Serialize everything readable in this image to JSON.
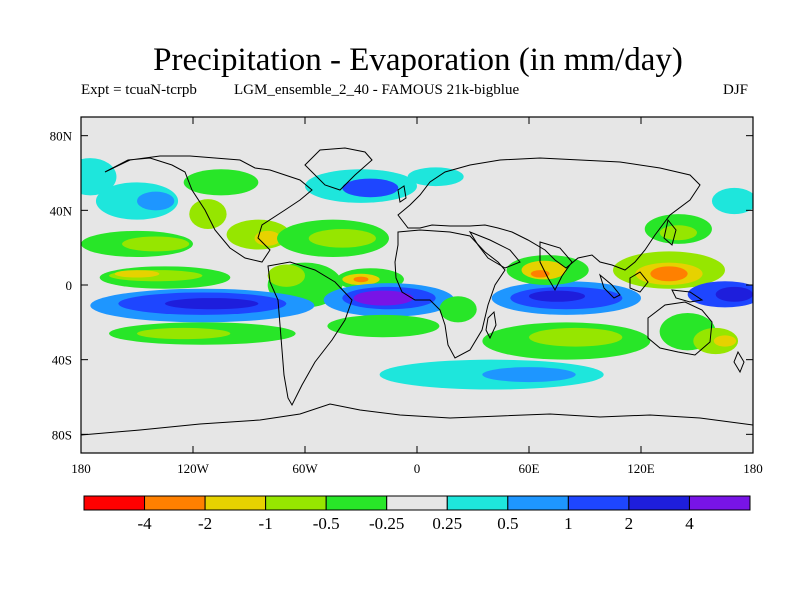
{
  "chart_data": {
    "type": "heatmap",
    "title": "Precipitation - Evaporation (in mm/day)",
    "experiment": "Expt = tcuaN-tcrpb",
    "run": "LGM_ensemble_2_40 - FAMOUS 21k-bigblue",
    "season": "DJF",
    "x_ticks": [
      {
        "value": -180,
        "label": "180"
      },
      {
        "value": -120,
        "label": "120W"
      },
      {
        "value": -60,
        "label": "60W"
      },
      {
        "value": 0,
        "label": "0"
      },
      {
        "value": 60,
        "label": "60E"
      },
      {
        "value": 120,
        "label": "120E"
      },
      {
        "value": 180,
        "label": "180"
      }
    ],
    "y_ticks": [
      {
        "value": 80,
        "label": "80N"
      },
      {
        "value": 40,
        "label": "40N"
      },
      {
        "value": 0,
        "label": "0"
      },
      {
        "value": -40,
        "label": "40S"
      },
      {
        "value": -80,
        "label": "80S"
      }
    ],
    "xlim": [
      -180,
      180
    ],
    "ylim": [
      -90,
      90
    ],
    "colorbar": {
      "colors": [
        "#ff0000",
        "#ff8000",
        "#e6d200",
        "#96e600",
        "#28e628",
        "#e6e6e6",
        "#1ee6dc",
        "#1e96ff",
        "#1e46ff",
        "#1e1edc",
        "#7814e6"
      ],
      "labels": [
        "-4",
        "-2",
        "-1",
        "-0.5",
        "-0.25",
        "0.25",
        "0.5",
        "1",
        "2",
        "4"
      ]
    },
    "regions": [
      {
        "name": "subtropical-north-pacific-dry",
        "color": "#28e628",
        "cx": -150,
        "cy": 22,
        "rx": 30,
        "ry": 7
      },
      {
        "name": "subtropical-north-pacific-drier",
        "color": "#96e600",
        "cx": -140,
        "cy": 22,
        "rx": 18,
        "ry": 4
      },
      {
        "name": "north-pacific-storm-track",
        "color": "#1ee6dc",
        "cx": -175,
        "cy": 58,
        "rx": 14,
        "ry": 10
      },
      {
        "name": "aleutian-low-wet",
        "color": "#1ee6dc",
        "cx": -150,
        "cy": 45,
        "rx": 22,
        "ry": 10
      },
      {
        "name": "aleutian-low-wetter",
        "color": "#1e96ff",
        "cx": -140,
        "cy": 45,
        "rx": 10,
        "ry": 5
      },
      {
        "name": "north-america-west-dry",
        "color": "#96e600",
        "cx": -112,
        "cy": 38,
        "rx": 10,
        "ry": 8
      },
      {
        "name": "canada-dry",
        "color": "#28e628",
        "cx": -105,
        "cy": 55,
        "rx": 20,
        "ry": 7
      },
      {
        "name": "gulf-of-mexico-dry",
        "color": "#96e600",
        "cx": -85,
        "cy": 27,
        "rx": 17,
        "ry": 8
      },
      {
        "name": "gulf-of-mexico-drier",
        "color": "#e6d200",
        "cx": -80,
        "cy": 25,
        "rx": 7,
        "ry": 4
      },
      {
        "name": "north-atlantic-subtropics-dry",
        "color": "#28e628",
        "cx": -45,
        "cy": 25,
        "rx": 30,
        "ry": 10
      },
      {
        "name": "north-atlantic-subtropics-drier",
        "color": "#96e600",
        "cx": -40,
        "cy": 25,
        "rx": 18,
        "ry": 5
      },
      {
        "name": "north-atlantic-storm-track",
        "color": "#1ee6dc",
        "cx": -30,
        "cy": 53,
        "rx": 30,
        "ry": 9
      },
      {
        "name": "north-atlantic-storm-track-core",
        "color": "#1e46ff",
        "cx": -25,
        "cy": 52,
        "rx": 15,
        "ry": 5
      },
      {
        "name": "northern-europe-wet",
        "color": "#1ee6dc",
        "cx": 10,
        "cy": 58,
        "rx": 15,
        "ry": 5
      },
      {
        "name": "east-pacific-itcz-dry",
        "color": "#28e628",
        "cx": -135,
        "cy": 4,
        "rx": 35,
        "ry": 6
      },
      {
        "name": "east-pacific-itcz-drier",
        "color": "#96e600",
        "cx": -140,
        "cy": 5,
        "rx": 25,
        "ry": 3
      },
      {
        "name": "east-pacific-itcz-driest",
        "color": "#e6d200",
        "cx": -150,
        "cy": 6,
        "rx": 12,
        "ry": 2
      },
      {
        "name": "amazon-dry",
        "color": "#28e628",
        "cx": -60,
        "cy": 0,
        "rx": 20,
        "ry": 12
      },
      {
        "name": "amazon-north-drier",
        "color": "#96e600",
        "cx": -70,
        "cy": 5,
        "rx": 10,
        "ry": 6
      },
      {
        "name": "atlantic-itcz-dry",
        "color": "#28e628",
        "cx": -25,
        "cy": 3,
        "rx": 18,
        "ry": 6
      },
      {
        "name": "atlantic-itcz-drier",
        "color": "#e6d200",
        "cx": -30,
        "cy": 3,
        "rx": 10,
        "ry": 3
      },
      {
        "name": "atlantic-itcz-driest",
        "color": "#ff8000",
        "cx": -30,
        "cy": 3,
        "rx": 4,
        "ry": 1.5
      },
      {
        "name": "south-pacific-wet-band",
        "color": "#1e96ff",
        "cx": -115,
        "cy": -11,
        "rx": 60,
        "ry": 9
      },
      {
        "name": "south-pacific-wet-band-core",
        "color": "#1e46ff",
        "cx": -115,
        "cy": -10,
        "rx": 45,
        "ry": 6
      },
      {
        "name": "south-pacific-wet-band-max",
        "color": "#1e1edc",
        "cx": -110,
        "cy": -10,
        "rx": 25,
        "ry": 3
      },
      {
        "name": "south-pacific-dry-band",
        "color": "#28e628",
        "cx": -115,
        "cy": -26,
        "rx": 50,
        "ry": 6
      },
      {
        "name": "south-pacific-dry-band-core",
        "color": "#96e600",
        "cx": -125,
        "cy": -26,
        "rx": 25,
        "ry": 3
      },
      {
        "name": "south-atlantic-wet-band",
        "color": "#1e96ff",
        "cx": -15,
        "cy": -8,
        "rx": 35,
        "ry": 9
      },
      {
        "name": "south-atlantic-wet-band-core",
        "color": "#1e46ff",
        "cx": -15,
        "cy": -7,
        "rx": 25,
        "ry": 6
      },
      {
        "name": "south-atlantic-wet-band-max",
        "color": "#7814e6",
        "cx": -18,
        "cy": -7,
        "rx": 16,
        "ry": 4
      },
      {
        "name": "south-atlantic-dry-band",
        "color": "#28e628",
        "cx": -18,
        "cy": -22,
        "rx": 30,
        "ry": 6
      },
      {
        "name": "southern-africa-dry",
        "color": "#28e628",
        "cx": 22,
        "cy": -13,
        "rx": 10,
        "ry": 7
      },
      {
        "name": "southern-ocean-wet",
        "color": "#1ee6dc",
        "cx": 40,
        "cy": -48,
        "rx": 60,
        "ry": 8
      },
      {
        "name": "southern-ocean-wet-core",
        "color": "#1e96ff",
        "cx": 60,
        "cy": -48,
        "rx": 25,
        "ry": 4
      },
      {
        "name": "south-indian-ocean-dry",
        "color": "#28e628",
        "cx": 80,
        "cy": -30,
        "rx": 45,
        "ry": 10
      },
      {
        "name": "south-indian-ocean-drier",
        "color": "#96e600",
        "cx": 85,
        "cy": -28,
        "rx": 25,
        "ry": 5
      },
      {
        "name": "indian-ocean-wet-band",
        "color": "#1e96ff",
        "cx": 80,
        "cy": -7,
        "rx": 40,
        "ry": 9
      },
      {
        "name": "indian-ocean-wet-band-core",
        "color": "#1e46ff",
        "cx": 80,
        "cy": -7,
        "rx": 30,
        "ry": 6
      },
      {
        "name": "indian-ocean-wet-band-max",
        "color": "#1e1edc",
        "cx": 75,
        "cy": -6,
        "rx": 15,
        "ry": 3
      },
      {
        "name": "arabian-sea-dry",
        "color": "#28e628",
        "cx": 70,
        "cy": 8,
        "rx": 22,
        "ry": 8
      },
      {
        "name": "arabian-sea-drier",
        "color": "#e6d200",
        "cx": 68,
        "cy": 8,
        "rx": 12,
        "ry": 5
      },
      {
        "name": "arabian-sea-driest",
        "color": "#ff8000",
        "cx": 66,
        "cy": 6,
        "rx": 5,
        "ry": 2
      },
      {
        "name": "maritime-continent-dry",
        "color": "#96e600",
        "cx": 135,
        "cy": 8,
        "rx": 30,
        "ry": 10
      },
      {
        "name": "maritime-continent-drier",
        "color": "#e6d200",
        "cx": 135,
        "cy": 6,
        "rx": 18,
        "ry": 6
      },
      {
        "name": "maritime-continent-driest",
        "color": "#ff8000",
        "cx": 135,
        "cy": 6,
        "rx": 10,
        "ry": 4
      },
      {
        "name": "warm-pool-wet",
        "color": "#1e46ff",
        "cx": 165,
        "cy": -5,
        "rx": 20,
        "ry": 7
      },
      {
        "name": "warm-pool-wet-core",
        "color": "#1e1edc",
        "cx": 170,
        "cy": -5,
        "rx": 10,
        "ry": 4
      },
      {
        "name": "kuroshio-dry",
        "color": "#28e628",
        "cx": 140,
        "cy": 30,
        "rx": 18,
        "ry": 8
      },
      {
        "name": "kuroshio-drier",
        "color": "#96e600",
        "cx": 140,
        "cy": 28,
        "rx": 10,
        "ry": 4
      },
      {
        "name": "northwest-pacific-wet",
        "color": "#1ee6dc",
        "cx": 170,
        "cy": 45,
        "rx": 12,
        "ry": 7
      },
      {
        "name": "australia-dry",
        "color": "#28e628",
        "cx": 145,
        "cy": -25,
        "rx": 15,
        "ry": 10
      },
      {
        "name": "tasman-sea-drier",
        "color": "#96e600",
        "cx": 160,
        "cy": -30,
        "rx": 12,
        "ry": 7
      },
      {
        "name": "tasman-sea-driest",
        "color": "#e6d200",
        "cx": 165,
        "cy": -30,
        "rx": 6,
        "ry": 3
      }
    ]
  }
}
